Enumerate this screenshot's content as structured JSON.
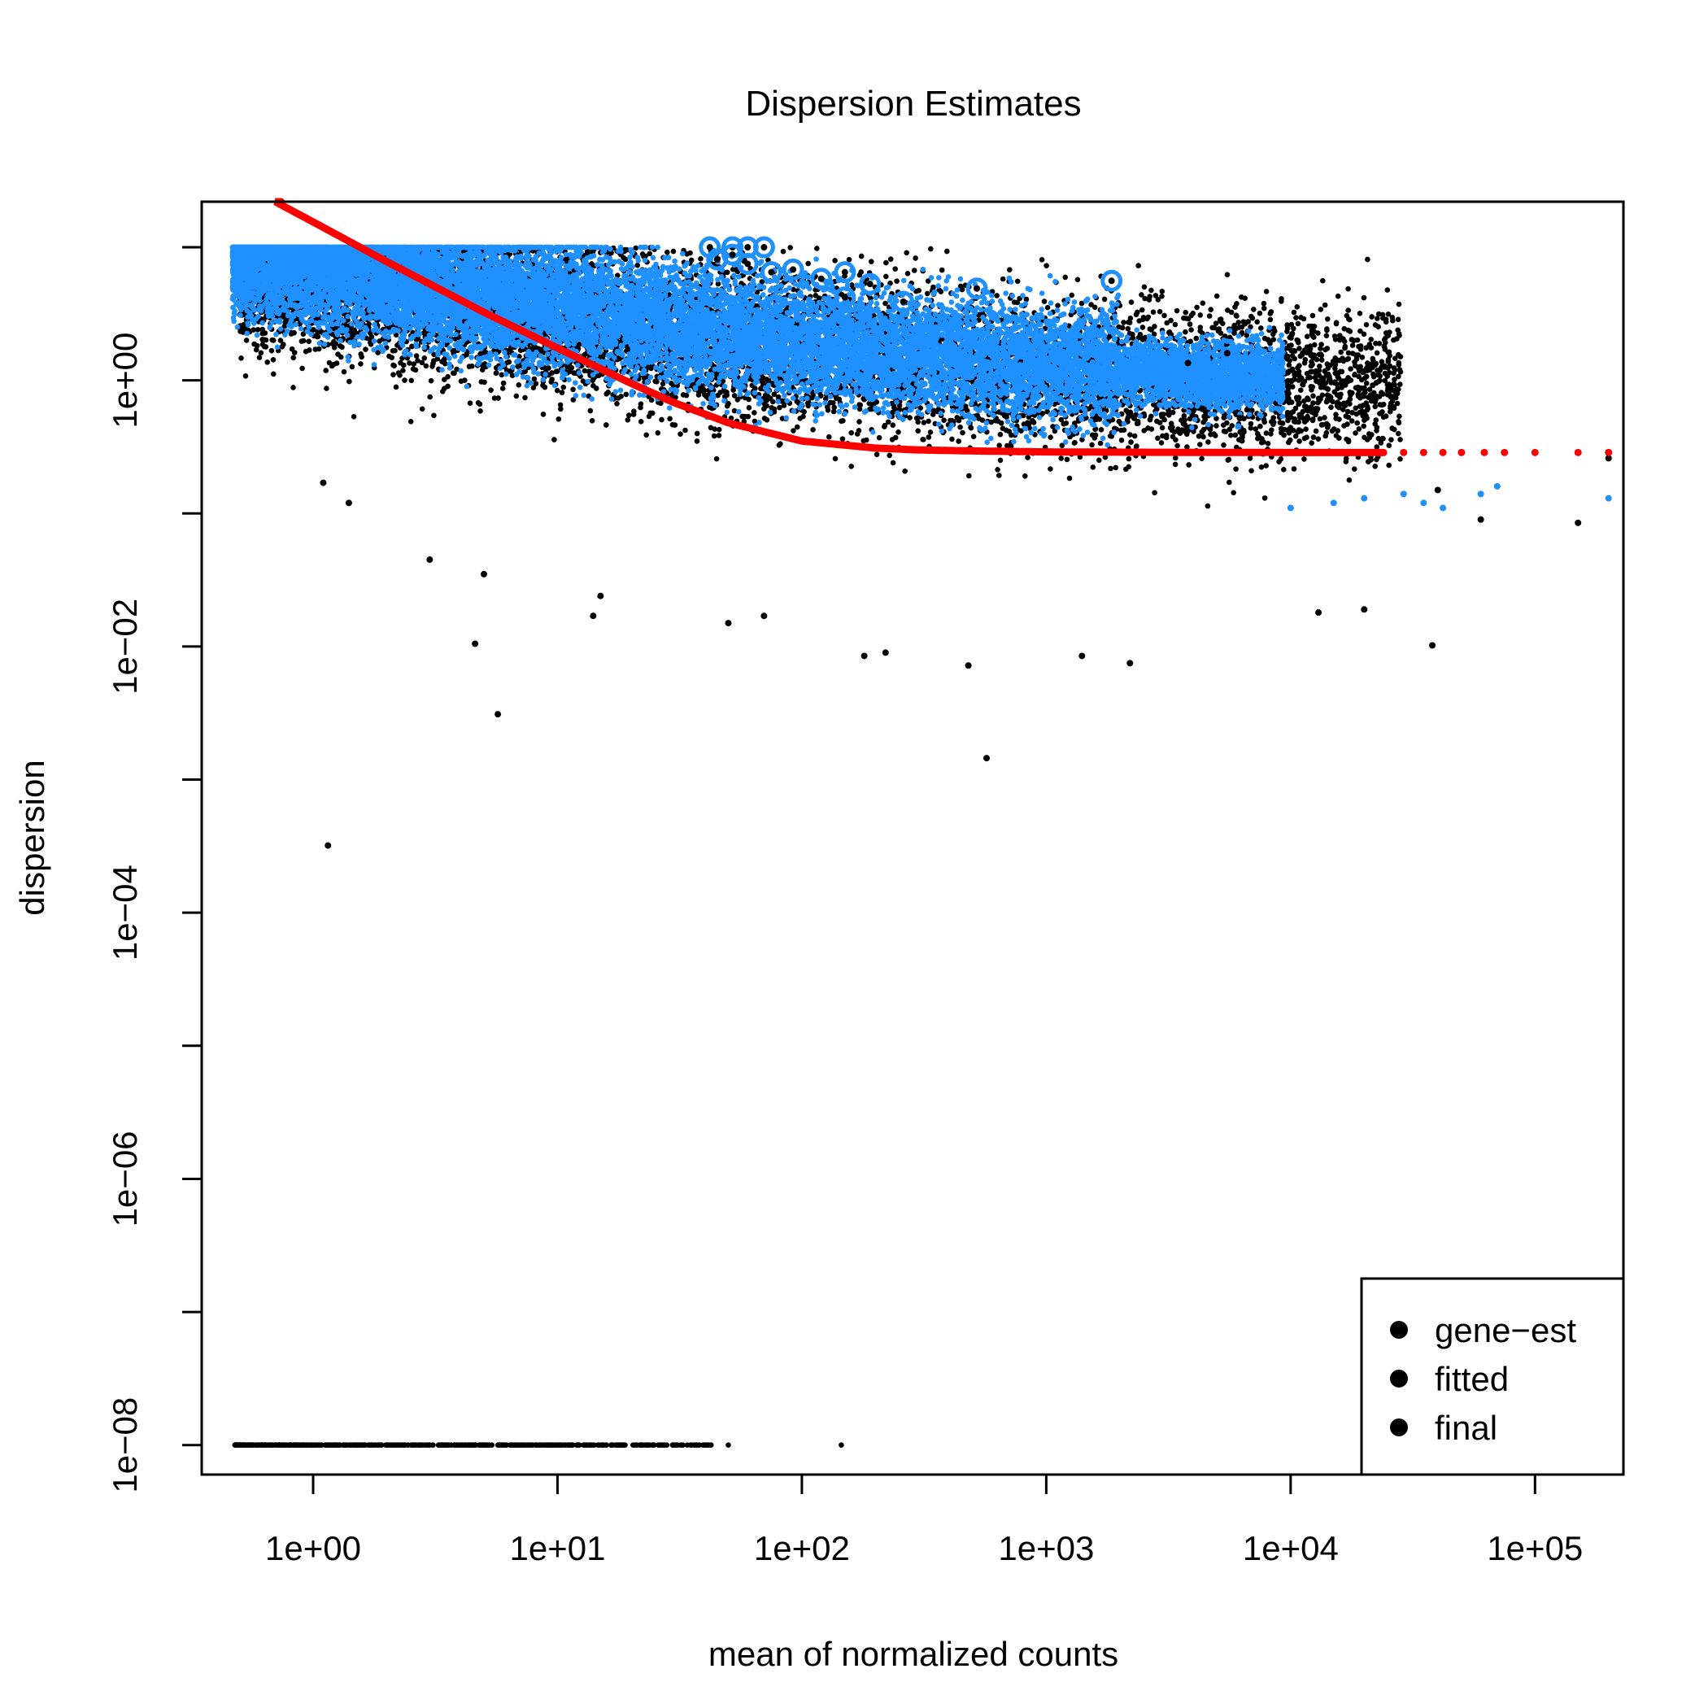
{
  "chart_data": {
    "type": "scatter",
    "title": "Dispersion Estimates",
    "xlabel": "mean of normalized counts",
    "ylabel": "dispersion",
    "x_scale": "log",
    "y_scale": "log",
    "xlim": [
      0.35,
      230000
    ],
    "ylim": [
      6e-09,
      22
    ],
    "x_ticks": [
      {
        "value": 1,
        "label": "1e+00"
      },
      {
        "value": 10,
        "label": "1e+01"
      },
      {
        "value": 100,
        "label": "1e+02"
      },
      {
        "value": 1000,
        "label": "1e+03"
      },
      {
        "value": 10000,
        "label": "1e+04"
      },
      {
        "value": 100000,
        "label": "1e+05"
      }
    ],
    "y_ticks": [
      {
        "value": 1e-08,
        "label": "1e−08"
      },
      {
        "value": 1e-07,
        "label": ""
      },
      {
        "value": 1e-06,
        "label": "1e−06"
      },
      {
        "value": 1e-05,
        "label": ""
      },
      {
        "value": 0.0001,
        "label": "1e−04"
      },
      {
        "value": 0.001,
        "label": ""
      },
      {
        "value": 0.01,
        "label": "1e−02"
      },
      {
        "value": 0.1,
        "label": ""
      },
      {
        "value": 1,
        "label": "1e+00"
      },
      {
        "value": 10,
        "label": ""
      }
    ],
    "grid": false,
    "legend_position": "bottom-right",
    "legend": [
      {
        "label": "gene−est",
        "color": "#000000"
      },
      {
        "label": "fitted",
        "color": "#ff0000"
      },
      {
        "label": "final",
        "color": "#1e90ff"
      }
    ],
    "series": [
      {
        "name": "gene−est",
        "color": "#000000",
        "description_of_cloud": "dense point cloud; dispersion decreasing with mean from about 10 at mean 0.5 to about 0.1 at mean 1e4",
        "points": [
          [
            1.15,
            0.00032
          ],
          [
            5.7,
            0.0031
          ],
          [
            4.6,
            0.0105
          ],
          [
            570,
            0.00145
          ],
          [
            1.1,
            0.17
          ],
          [
            1.4,
            0.12
          ],
          [
            3.0,
            0.045
          ],
          [
            5.0,
            0.035
          ],
          [
            14,
            0.017
          ],
          [
            15,
            0.024
          ],
          [
            50,
            0.015
          ],
          [
            70,
            0.017
          ],
          [
            180,
            0.0085
          ],
          [
            220,
            0.009
          ],
          [
            480,
            0.0072
          ],
          [
            1400,
            0.0085
          ],
          [
            2200,
            0.0075
          ],
          [
            13000,
            0.018
          ],
          [
            20000,
            0.019
          ],
          [
            38000,
            0.0102
          ],
          [
            5500,
            1.6
          ],
          [
            3800,
            1.35
          ],
          [
            6200,
            0.52
          ],
          [
            200000,
            0.26
          ],
          [
            150000,
            0.085
          ],
          [
            40000,
            0.15
          ],
          [
            60000,
            0.09
          ]
        ]
      },
      {
        "name": "fitted",
        "color": "#ff0000",
        "curve": [
          [
            0.7,
            22
          ],
          [
            1,
            15.5
          ],
          [
            2,
            7.8
          ],
          [
            3,
            5.3
          ],
          [
            5,
            3.25
          ],
          [
            10,
            1.75
          ],
          [
            20,
            0.95
          ],
          [
            30,
            0.68
          ],
          [
            50,
            0.48
          ],
          [
            100,
            0.35
          ],
          [
            200,
            0.31
          ],
          [
            300,
            0.3
          ],
          [
            500,
            0.295
          ],
          [
            1000,
            0.29
          ],
          [
            3000,
            0.288
          ],
          [
            10000,
            0.287
          ],
          [
            24000,
            0.287
          ]
        ],
        "points": [
          [
            29000,
            0.287
          ],
          [
            35000,
            0.287
          ],
          [
            42000,
            0.287
          ],
          [
            50000,
            0.287
          ],
          [
            62000,
            0.287
          ],
          [
            75000,
            0.287
          ],
          [
            100000,
            0.287
          ],
          [
            150000,
            0.287
          ],
          [
            200000,
            0.287
          ]
        ]
      },
      {
        "name": "final",
        "color": "#1e90ff",
        "description_of_cloud": "dense point cloud shrunk toward fitted curve; capped at dispersion 10 for low means",
        "points": [
          [
            5600,
            1.05
          ],
          [
            3900,
            0.75
          ],
          [
            6100,
            0.45
          ],
          [
            29000,
            0.14
          ],
          [
            35000,
            0.12
          ],
          [
            42000,
            0.11
          ],
          [
            60000,
            0.14
          ],
          [
            70000,
            0.16
          ],
          [
            200000,
            0.13
          ],
          [
            15000,
            0.12
          ],
          [
            20000,
            0.13
          ],
          [
            10000,
            0.11
          ]
        ]
      },
      {
        "name": "outliers",
        "color": "#1e90ff",
        "description": "gene-est points circled in final color",
        "points": [
          [
            42,
            10
          ],
          [
            52,
            10
          ],
          [
            60,
            10
          ],
          [
            70,
            10
          ],
          [
            45,
            8.1
          ],
          [
            52,
            8.8
          ],
          [
            60,
            7.5
          ],
          [
            75,
            6.5
          ],
          [
            92,
            6.8
          ],
          [
            120,
            5.8
          ],
          [
            150,
            6.5
          ],
          [
            150,
            4.2
          ],
          [
            190,
            5.3
          ],
          [
            260,
            3.9
          ],
          [
            520,
            4.9
          ],
          [
            1850,
            5.6
          ]
        ]
      }
    ]
  }
}
